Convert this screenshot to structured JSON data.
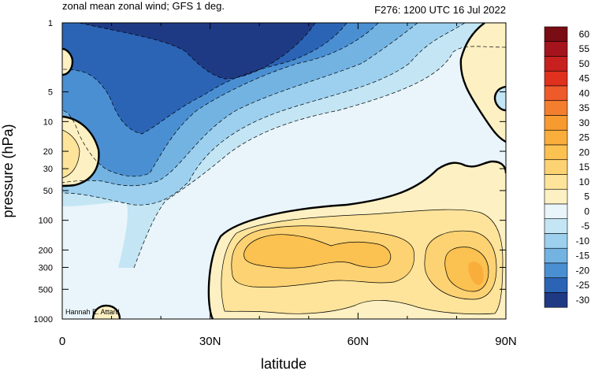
{
  "chart_data": {
    "type": "heatmap",
    "title_left": "zonal mean zonal wind; GFS 1 deg.",
    "title_right": "F276: 1200 UTC 16 Jul 2022",
    "xlabel": "latitude",
    "ylabel": "pressure (hPa)",
    "x_ticks": [
      "0",
      "30N",
      "60N",
      "90N"
    ],
    "x_tick_values": [
      0,
      30,
      60,
      90
    ],
    "xlim": [
      0,
      90
    ],
    "y_ticks": [
      "1",
      "5",
      "10",
      "20",
      "30",
      "50",
      "100",
      "200",
      "300",
      "500",
      "1000"
    ],
    "y_tick_values": [
      1,
      5,
      10,
      20,
      30,
      50,
      100,
      200,
      300,
      500,
      1000
    ],
    "ylim": [
      1,
      1000
    ],
    "y_scale": "log",
    "y_inverted": true,
    "attribution": "Hannah E. Attard",
    "colorbar": {
      "levels": [
        "60",
        "55",
        "50",
        "45",
        "40",
        "35",
        "30",
        "25",
        "20",
        "15",
        "10",
        "5",
        "0",
        "-5",
        "-10",
        "-15",
        "-20",
        "-25",
        "-30"
      ],
      "colors": [
        "#7a0c14",
        "#a5141c",
        "#c8201e",
        "#e0301e",
        "#ee5a2a",
        "#f37f2e",
        "#f79a30",
        "#f9ad3a",
        "#fbc151",
        "#fcd273",
        "#fde49a",
        "#fdf0c2",
        "#e9f5fb",
        "#c3e5f4",
        "#9cd0ee",
        "#73b3e2",
        "#4a8fd2",
        "#2b64b5",
        "#1f3a84"
      ]
    },
    "fields": {
      "ne_10": "#fde49a",
      "ne_5": "#fdf0c2",
      "ne_0": "#e9f5fb",
      "ne_m5": "#c3e5f4",
      "ne_m10": "#9cd0ee",
      "ne_m15": "#73b3e2",
      "ne_m20": "#4a8fd2",
      "ne_m25": "#2b64b5",
      "ne_m30": "#1f3a84",
      "p_15": "#fcd273",
      "p_20": "#fbc151",
      "p_25": "#f9ad3a"
    }
  }
}
